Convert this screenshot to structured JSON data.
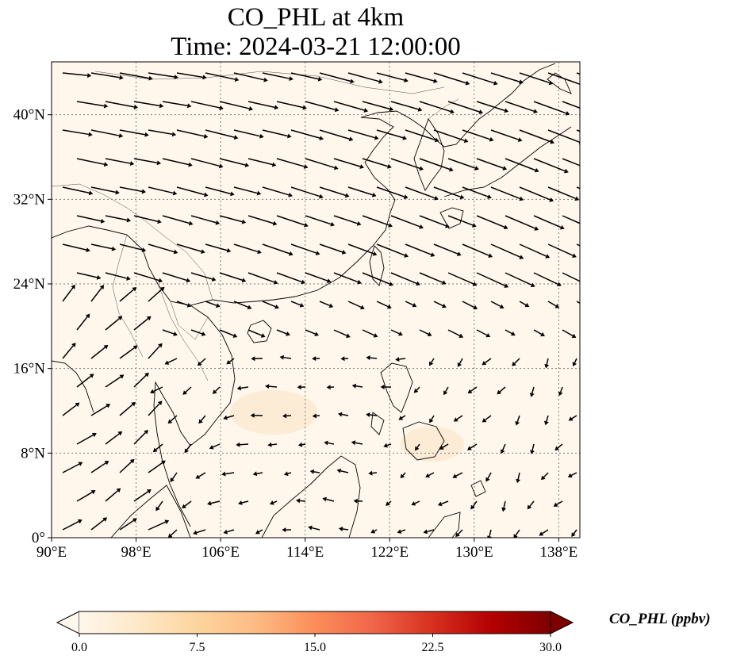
{
  "title": {
    "line1": "CO_PHL at 4km",
    "line2": "Time: 2024-03-21 12:00:00"
  },
  "map": {
    "lon_range": [
      90,
      140
    ],
    "lat_range": [
      0,
      45
    ],
    "x_ticks": [
      {
        "value": 90,
        "label": "90°E"
      },
      {
        "value": 98,
        "label": "98°E"
      },
      {
        "value": 106,
        "label": "106°E"
      },
      {
        "value": 114,
        "label": "114°E"
      },
      {
        "value": 122,
        "label": "122°E"
      },
      {
        "value": 130,
        "label": "130°E"
      },
      {
        "value": 138,
        "label": "138°E"
      }
    ],
    "y_ticks": [
      {
        "value": 0,
        "label": "0°"
      },
      {
        "value": 8,
        "label": "8°N"
      },
      {
        "value": 16,
        "label": "16°N"
      },
      {
        "value": 24,
        "label": "24°N"
      },
      {
        "value": 32,
        "label": "32°N"
      },
      {
        "value": 40,
        "label": "40°N"
      }
    ],
    "gridlines": true,
    "field_color": "#fff7eb"
  },
  "colorbar": {
    "label": "CO_PHL (ppbv)",
    "min": 0.0,
    "max": 30.0,
    "ticks": [
      "0.0",
      "7.5",
      "15.0",
      "22.5",
      "30.0"
    ],
    "colors": [
      "#fff7ec",
      "#fee8c8",
      "#fdd49e",
      "#fdbb84",
      "#fc8d59",
      "#ef6548",
      "#d7301f",
      "#b30000",
      "#7f0000"
    ],
    "extend": "both"
  }
}
